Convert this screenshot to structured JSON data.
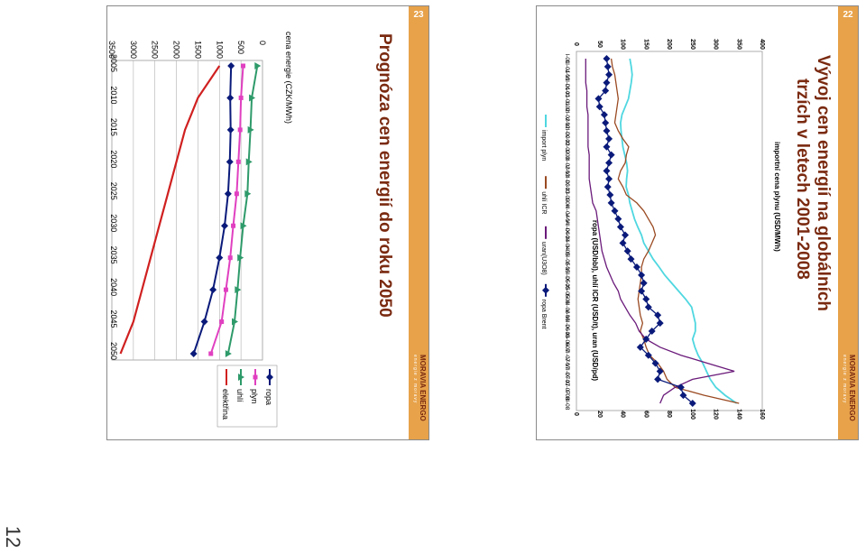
{
  "left_slide": {
    "number": "23",
    "title": "Prognóza cen energií do roku 2050",
    "brand_small": "energie z moravy",
    "brand": "MORAVIA ENERGO"
  },
  "right_slide": {
    "number": "22",
    "title_line1": "Vývoj cen energií na globálních",
    "title_line2": "trzích v letech 2001-2008",
    "brand_small": "energie z moravy",
    "brand": "MORAVIA ENERGO"
  },
  "page_side_number": "12",
  "colors": {
    "accent_stripe": "#e7a24a",
    "title": "#7a2a10",
    "ropa": "#0a1a7a",
    "plyn": "#e040c0",
    "uhli": "#2e9a6a",
    "elektrina": "#d02020",
    "import_plyn": "#4fd7e0",
    "uhli_icr": "#9a4a22",
    "uran": "#6a1a7a",
    "ropa_brent": "#0a1a7a"
  },
  "chart_data": [
    {
      "type": "line",
      "title": "",
      "ylabel": "cena energie (CZK/MWh)",
      "xlabel": "",
      "ylim": [
        0,
        3500
      ],
      "yticks": [
        0,
        500,
        1000,
        1500,
        2000,
        2500,
        3000,
        3500
      ],
      "categories": [
        "2005",
        "2010",
        "2015",
        "2020",
        "2025",
        "2030",
        "2035",
        "2040",
        "2045",
        "2050"
      ],
      "legend_position": "right",
      "series": [
        {
          "name": "ropa",
          "marker": "diamond",
          "values": [
            730,
            750,
            740,
            760,
            800,
            880,
            1000,
            1150,
            1350,
            1600
          ]
        },
        {
          "name": "plyn",
          "marker": "square",
          "values": [
            450,
            500,
            520,
            560,
            600,
            680,
            750,
            850,
            950,
            1200
          ]
        },
        {
          "name": "uhlí",
          "marker": "triangle",
          "values": [
            120,
            250,
            280,
            320,
            350,
            450,
            520,
            580,
            650,
            800
          ]
        },
        {
          "name": "elektřina",
          "marker": "none",
          "values": [
            1000,
            1500,
            1800,
            2000,
            2200,
            2400,
            2600,
            2800,
            3000,
            3300
          ]
        }
      ]
    },
    {
      "type": "line",
      "title": "",
      "ylabel_left": "importní cena plynu (USD/MWh)",
      "ylabel_right": "ropa (USD/bbl), uhlí ICR (USD/t), uran (USD/pd)",
      "ylim_left": [
        0,
        400
      ],
      "yticks_left": [
        0,
        50,
        100,
        150,
        200,
        250,
        300,
        350,
        400
      ],
      "ylim_right": [
        0,
        160
      ],
      "yticks_right": [
        0,
        20,
        40,
        60,
        80,
        100,
        120,
        140,
        160
      ],
      "categories": [
        "I-01",
        "III-01",
        "V-01",
        "VII-01",
        "IX-01",
        "XI-01",
        "I-02",
        "III-02",
        "V-02",
        "VII-02",
        "IX-02",
        "XI-02",
        "I-03",
        "III-03",
        "V-03",
        "VII-03",
        "IX-03",
        "XI-03",
        "I-04",
        "III-04",
        "V-04",
        "VII-04",
        "IX-04",
        "XI-04",
        "I-05",
        "III-05",
        "V-05",
        "VII-05",
        "IX-05",
        "XI-05",
        "I-06",
        "III-06",
        "V-06",
        "VII-06",
        "IX-06",
        "XI-06",
        "I-07",
        "III-07",
        "V-07",
        "VII-07",
        "IX-07",
        "XI-07",
        "I-08",
        "III-08"
      ],
      "legend_position": "bottom",
      "series": [
        {
          "name": "import plyn",
          "axis": "left",
          "values": [
            115,
            118,
            120,
            118,
            115,
            112,
            105,
            98,
            95,
            96,
            98,
            100,
            104,
            108,
            110,
            108,
            107,
            112,
            115,
            120,
            125,
            132,
            140,
            145,
            155,
            165,
            178,
            190,
            205,
            220,
            235,
            248,
            252,
            256,
            256,
            250,
            255,
            262,
            272,
            280,
            288,
            300,
            320,
            345
          ]
        },
        {
          "name": "uhlí ICR",
          "axis": "right",
          "values": [
            30,
            31,
            33,
            34,
            35,
            36,
            35,
            34,
            33,
            36,
            40,
            45,
            43,
            42,
            38,
            36,
            40,
            43,
            52,
            58,
            62,
            66,
            68,
            65,
            62,
            58,
            56,
            56,
            55,
            54,
            53,
            54,
            55,
            57,
            55,
            58,
            60,
            63,
            70,
            75,
            78,
            85,
            110,
            140
          ]
        },
        {
          "name": "uran(U3O8)",
          "axis": "right",
          "values": [
            8,
            8,
            8,
            8,
            9,
            9,
            9,
            10,
            10,
            10,
            10,
            10,
            11,
            11,
            11,
            11,
            12,
            13,
            14,
            17,
            18,
            19,
            20,
            21,
            22,
            24,
            26,
            29,
            32,
            36,
            38,
            42,
            46,
            51,
            54,
            60,
            72,
            90,
            113,
            136,
            100,
            85,
            75,
            72
          ]
        },
        {
          "name": "ropa Brent",
          "axis": "right",
          "values": [
            26,
            27,
            28,
            26,
            25,
            19,
            20,
            24,
            25,
            26,
            28,
            26,
            30,
            28,
            26,
            28,
            27,
            29,
            30,
            33,
            36,
            38,
            42,
            40,
            44,
            47,
            52,
            56,
            58,
            56,
            60,
            62,
            70,
            72,
            65,
            60,
            55,
            62,
            68,
            72,
            70,
            90,
            92,
            100
          ]
        }
      ]
    }
  ]
}
